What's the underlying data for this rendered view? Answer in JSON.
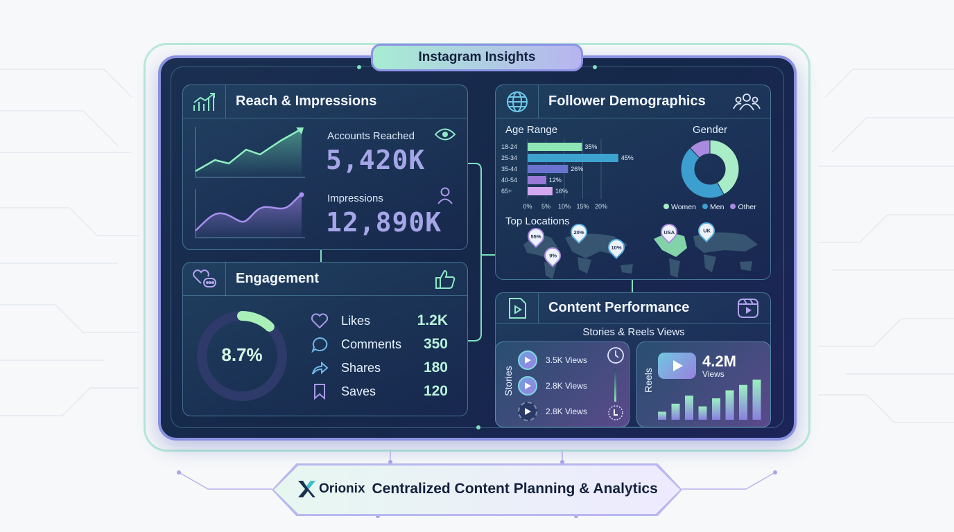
{
  "title": "Instagram Insights",
  "reach": {
    "title": "Reach & Impressions",
    "accounts_reached_label": "Accounts Reached",
    "accounts_reached_value": "5,420K",
    "impressions_label": "Impressions",
    "impressions_value": "12,890K"
  },
  "engagement": {
    "title": "Engagement",
    "rate": "8.7%",
    "rate_fill_percent": 8.7,
    "items": [
      {
        "label": "Likes",
        "value": "1.2K",
        "icon": "heart-icon"
      },
      {
        "label": "Comments",
        "value": "350",
        "icon": "comment-icon"
      },
      {
        "label": "Shares",
        "value": "180",
        "icon": "share-icon"
      },
      {
        "label": "Saves",
        "value": "120",
        "icon": "bookmark-icon"
      }
    ]
  },
  "demographics": {
    "title": "Follower Demographics",
    "age_title": "Age Range",
    "gender_title": "Gender",
    "locations_title": "Top Locations",
    "age_ticks": [
      "0%",
      "5%",
      "10%",
      "15%",
      "20%"
    ],
    "location_pins": [
      "55%",
      "20%",
      "9%",
      "10%",
      "USA",
      "UK"
    ]
  },
  "chart_data": [
    {
      "type": "bar",
      "title": "Age Range",
      "categories": [
        "18-24",
        "25-34",
        "35-44",
        "40-54",
        "65+"
      ],
      "values": [
        35,
        45,
        26,
        12,
        16
      ],
      "value_labels": [
        "35%",
        "45%",
        "26%",
        "12%",
        "16%"
      ],
      "colors": [
        "#8ee6b4",
        "#3ea2cf",
        "#6a74cf",
        "#9a78d8",
        "#d4a8ee"
      ],
      "orientation": "horizontal"
    },
    {
      "type": "pie",
      "title": "Gender",
      "categories": [
        "Women",
        "Men",
        "Other"
      ],
      "values": [
        42,
        46,
        12
      ],
      "colors": [
        "#a9ecc8",
        "#3d9ed0",
        "#a88ae0"
      ],
      "legend": "bottom"
    },
    {
      "type": "bar",
      "categories": [
        "1",
        "2",
        "3",
        "4",
        "5",
        "6",
        "7",
        "8"
      ],
      "values": [
        3,
        6,
        9,
        5,
        8,
        11,
        13,
        15
      ]
    }
  ],
  "content": {
    "title": "Content Performance",
    "subtitle": "Stories & Reels Views",
    "stories_label": "Stories",
    "stories": [
      "3.5K Views",
      "2.8K Views",
      "2.8K Views"
    ],
    "reels_label": "Reels",
    "reels_value": "4.2M",
    "reels_unit": "Views"
  },
  "footer": {
    "brand": "Orionix",
    "tagline": "Centralized Content Planning & Analytics"
  }
}
